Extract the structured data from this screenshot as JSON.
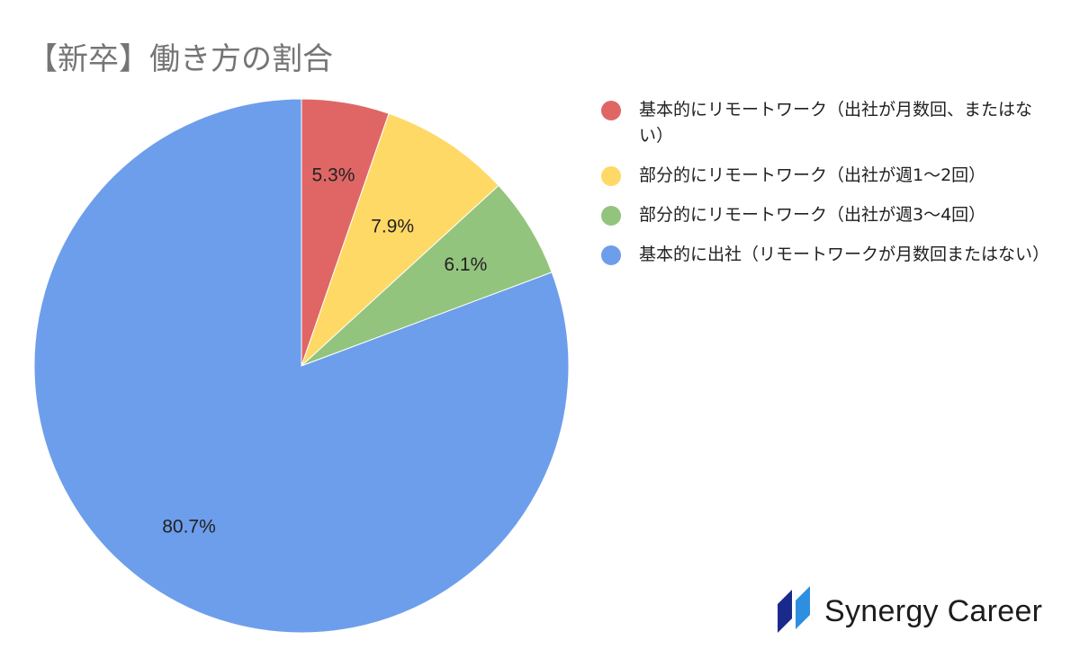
{
  "chart_data": {
    "type": "pie",
    "title": "【新卒】働き方の割合",
    "slices": [
      {
        "label": "基本的にリモートワーク（出社が月数回、またはない）",
        "value": 5.3,
        "display": "5.3%",
        "color": "#e06666"
      },
      {
        "label": "部分的にリモートワーク（出社が週1〜2回）",
        "value": 7.9,
        "display": "7.9%",
        "color": "#ffd966"
      },
      {
        "label": "部分的にリモートワーク（出社が週3〜4回）",
        "value": 6.1,
        "display": "6.1%",
        "color": "#93c47d"
      },
      {
        "label": "基本的に出社（リモートワークが月数回またはない）",
        "value": 80.7,
        "display": "80.7%",
        "color": "#6d9eeb"
      }
    ],
    "start_angle": "12 o'clock",
    "direction": "clockwise",
    "legend_position": "right"
  },
  "brand": {
    "name": "Synergy Career",
    "logo_icon": "synergy-career-logo-icon",
    "logo_colors": [
      "#1a2a8c",
      "#2e8fe0"
    ]
  }
}
